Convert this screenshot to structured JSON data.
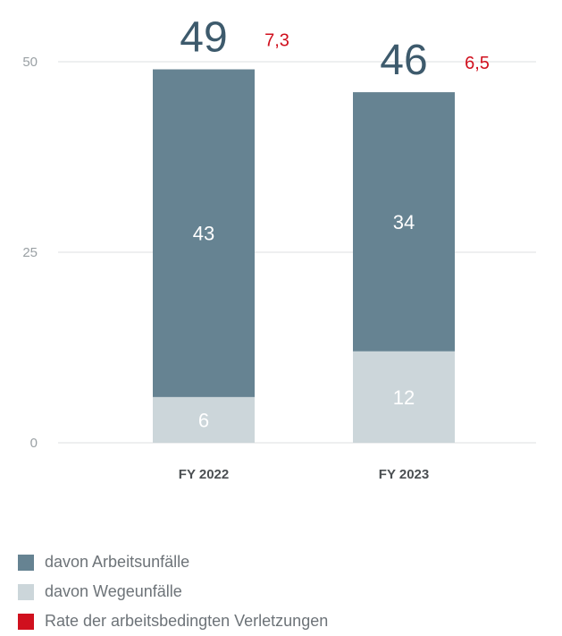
{
  "chart_data": {
    "type": "bar",
    "stacked": true,
    "categories": [
      "FY 2022",
      "FY 2023"
    ],
    "series": [
      {
        "name": "davon Wegeunfälle",
        "values": [
          6,
          12
        ],
        "color": "#ccd6da"
      },
      {
        "name": "davon Arbeitsunfälle",
        "values": [
          43,
          34
        ],
        "color": "#668392"
      }
    ],
    "totals": [
      "49",
      "46"
    ],
    "rates": [
      "7,3",
      "6,5"
    ],
    "rate_series_name": "Rate der arbeitsbedingten Verletzungen",
    "rate_color": "#d0101e",
    "ylim": [
      0,
      50
    ],
    "yticks": [
      0,
      25,
      50
    ],
    "grid": true,
    "legend_position": "bottom-left"
  },
  "legend": [
    {
      "label": "davon Arbeitsunfälle",
      "color": "#668392"
    },
    {
      "label": "davon Wegeunfälle",
      "color": "#ccd6da"
    },
    {
      "label": "Rate der arbeitsbedingten Verletzungen",
      "color": "#d0101e"
    }
  ]
}
